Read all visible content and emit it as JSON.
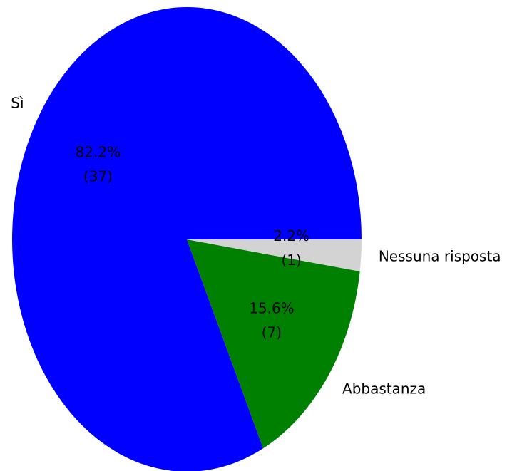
{
  "chart_data": {
    "type": "pie",
    "categories": [
      "Sì",
      "Abbastanza",
      "Nessuna risposta"
    ],
    "values": [
      82.2,
      15.6,
      2.2
    ],
    "value_labels": [
      "82.2%",
      "15.6%",
      "2.2%"
    ],
    "counts": [
      37,
      7,
      1
    ],
    "count_labels": [
      "(37)",
      "(7)",
      "(1)"
    ],
    "colors": [
      "#0000ff",
      "#008000",
      "#d3d3d3"
    ]
  }
}
